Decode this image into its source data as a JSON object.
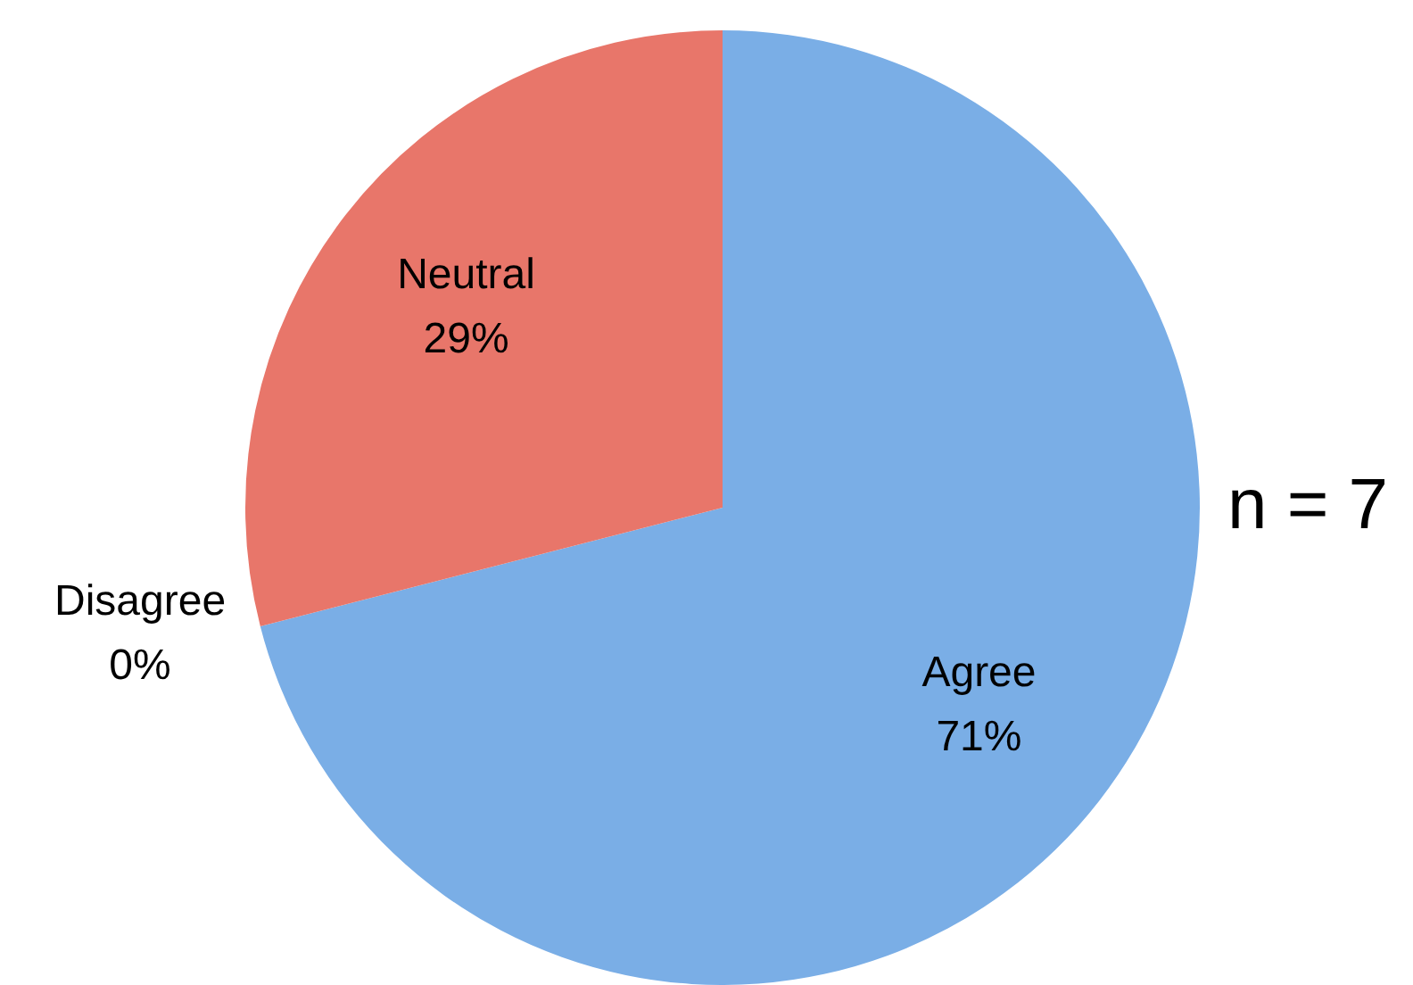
{
  "chart_data": {
    "type": "pie",
    "categories": [
      "Agree",
      "Disagree",
      "Neutral"
    ],
    "values": [
      71,
      0,
      29
    ],
    "colors": [
      "#7aaee6",
      "#6aa84f",
      "#e8766a"
    ],
    "value_labels": [
      "71%",
      "0%",
      "29%"
    ],
    "legend": false,
    "annotations": [
      "n = 7"
    ]
  }
}
